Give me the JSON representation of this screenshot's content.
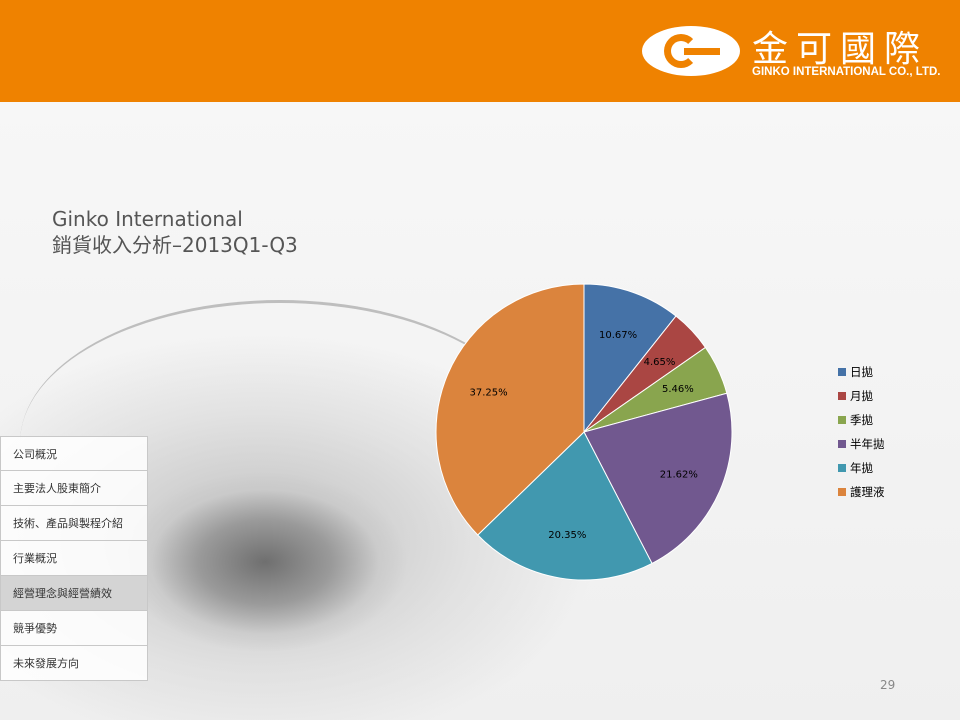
{
  "header": {
    "logo_icon": "ginko-c-logo-icon",
    "company_cn": "金可國際",
    "company_en": "GINKO INTERNATIONAL CO., LTD."
  },
  "nav": {
    "items": [
      {
        "label": "公司概況"
      },
      {
        "label": "主要法人股東簡介"
      },
      {
        "label": "技術、產品與製程介紹"
      },
      {
        "label": "行業概況"
      },
      {
        "label": "經營理念與經營績效",
        "active": true
      },
      {
        "label": "競爭優勢"
      },
      {
        "label": "未來發展方向"
      }
    ]
  },
  "chart_data": {
    "type": "pie",
    "title": "Ginko International",
    "subtitle": "銷貨收入分析–2013Q1-Q3",
    "categories": [
      "日拋",
      "月拋",
      "季拋",
      "半年拋",
      "年拋",
      "護理液"
    ],
    "values": [
      10.67,
      4.65,
      5.46,
      21.62,
      20.35,
      37.25
    ],
    "data_labels": [
      "10.67%",
      "4.65%",
      "5.46%",
      "21.62%",
      "20.35%",
      "37.25%"
    ],
    "colors": [
      "#4572a7",
      "#aa4643",
      "#89a54e",
      "#71588f",
      "#4198af",
      "#db843d"
    ],
    "legend": "right"
  },
  "page_number": "29"
}
